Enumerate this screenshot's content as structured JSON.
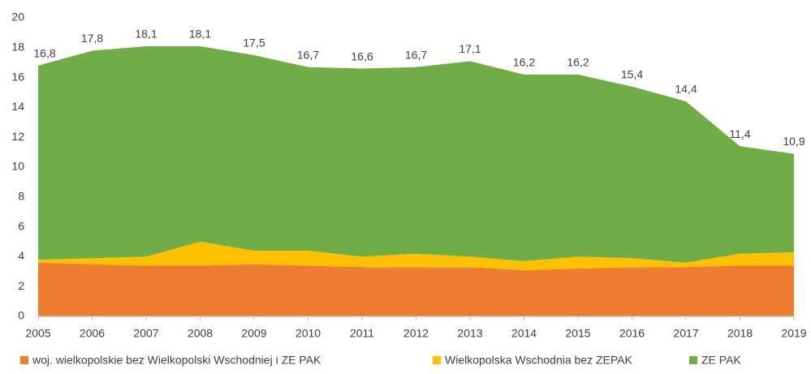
{
  "chart_data": {
    "type": "stacked_area",
    "x": [
      2005,
      2006,
      2007,
      2008,
      2009,
      2010,
      2011,
      2012,
      2013,
      2014,
      2015,
      2016,
      2017,
      2018,
      2019
    ],
    "xlim": [
      2005,
      2019
    ],
    "xticks": [
      2005,
      2006,
      2007,
      2008,
      2009,
      2010,
      2011,
      2012,
      2013,
      2014,
      2015,
      2016,
      2017,
      2018,
      2019
    ],
    "ylim": [
      0,
      20
    ],
    "yticks": [
      0,
      2,
      4,
      6,
      8,
      10,
      12,
      14,
      16,
      18,
      20
    ],
    "series": [
      {
        "name": "woj. wielkopolskie bez Wielkopolski Wschodniej i ZE PAK",
        "color": "#ED7D31",
        "values": [
          3.6,
          3.5,
          3.4,
          3.4,
          3.5,
          3.4,
          3.3,
          3.3,
          3.3,
          3.1,
          3.2,
          3.3,
          3.3,
          3.4,
          3.4
        ]
      },
      {
        "name": "Wielkopolska Wschodnia bez ZEPAK",
        "color": "#FFC000",
        "values": [
          0.2,
          0.4,
          0.6,
          1.6,
          0.9,
          1.0,
          0.7,
          0.9,
          0.7,
          0.6,
          0.8,
          0.6,
          0.3,
          0.8,
          0.9
        ]
      },
      {
        "name": "ZE PAK",
        "color": "#70AD47",
        "values": [
          13.0,
          13.9,
          14.1,
          13.1,
          13.1,
          12.3,
          12.6,
          12.5,
          13.1,
          12.5,
          12.2,
          11.5,
          10.8,
          7.2,
          6.6
        ]
      }
    ],
    "total_labels": [
      "16,8",
      "17,8",
      "18,1",
      "18,1",
      "17,5",
      "16,7",
      "16,6",
      "16,7",
      "17,1",
      "16,2",
      "16,2",
      "15,4",
      "14,4",
      "11,4",
      "10,9"
    ],
    "grid": false,
    "legend": "bottom"
  }
}
